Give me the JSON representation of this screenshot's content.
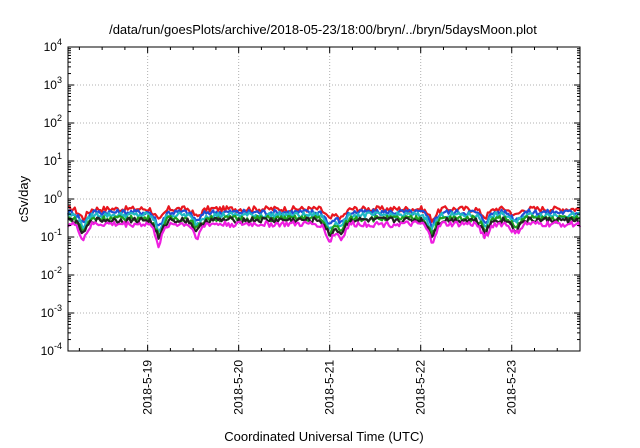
{
  "chart_data": {
    "type": "line",
    "title": "/data/run/goesPlots/archive/2018-05-23/18:00/bryn/../bryn/5daysMoon.plot",
    "xlabel": "Coordinated Universal Time (UTC)",
    "ylabel": "cSv/day",
    "yscale": "log",
    "ylim": [
      0.0001,
      10000
    ],
    "xlim": [
      "2018-05-18 03:00",
      "2018-05-23 18:00"
    ],
    "grid": true,
    "x_ticks": [
      "2018-5-19",
      "2018-5-20",
      "2018-5-21",
      "2018-5-22",
      "2018-5-23"
    ],
    "y_ticks": [
      {
        "base": "10",
        "exp": "-4"
      },
      {
        "base": "10",
        "exp": "-3"
      },
      {
        "base": "10",
        "exp": "-2"
      },
      {
        "base": "10",
        "exp": "-1"
      },
      {
        "base": "10",
        "exp": "0"
      },
      {
        "base": "10",
        "exp": "1"
      },
      {
        "base": "10",
        "exp": "2"
      },
      {
        "base": "10",
        "exp": "3"
      },
      {
        "base": "10",
        "exp": "4"
      }
    ],
    "series": [
      {
        "color": "#e8161e",
        "baseline": 0.55
      },
      {
        "color": "#1f4fd6",
        "baseline": 0.45
      },
      {
        "color": "#20b8c4",
        "baseline": 0.38
      },
      {
        "color": "#1ea01e",
        "baseline": 0.31
      },
      {
        "color": "#222222",
        "baseline": 0.28
      },
      {
        "color": "#ee1ee0",
        "baseline": 0.22
      }
    ],
    "dips": [
      {
        "time": "2018-05-18 07:00",
        "depth": 0.45
      },
      {
        "time": "2018-05-19 03:00",
        "depth": 0.55
      },
      {
        "time": "2018-05-19 13:00",
        "depth": 0.4
      },
      {
        "time": "2018-05-21 00:00",
        "depth": 0.5
      },
      {
        "time": "2018-05-21 03:00",
        "depth": 0.45
      },
      {
        "time": "2018-05-22 03:00",
        "depth": 0.5
      },
      {
        "time": "2018-05-22 17:00",
        "depth": 0.4
      },
      {
        "time": "2018-05-23 01:00",
        "depth": 0.35
      }
    ]
  }
}
